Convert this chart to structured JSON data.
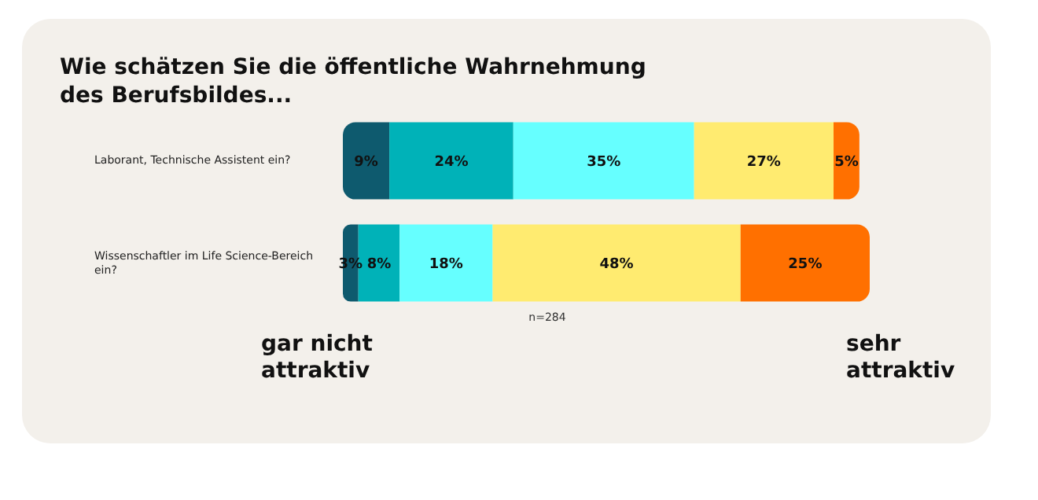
{
  "chart_data": {
    "type": "bar",
    "orientation": "horizontal",
    "stacked": true,
    "title": "Wie schätzen Sie die öffentliche Wahrnehmung des Berufsbildes...",
    "categories": [
      "Laborant, Technische Assistent ein?",
      "Wissenschaftler im Life Science-Bereich ein?"
    ],
    "series": [
      {
        "color": "#0e5a6e",
        "values": [
          9,
          3
        ],
        "value_labels": [
          "9%",
          "3%"
        ]
      },
      {
        "color": "#00b2b8",
        "values": [
          24,
          8
        ],
        "value_labels": [
          "24%",
          "8%"
        ]
      },
      {
        "color": "#66ffff",
        "values": [
          35,
          18
        ],
        "value_labels": [
          "35%",
          "18%"
        ]
      },
      {
        "color": "#ffeb70",
        "values": [
          27,
          48
        ],
        "value_labels": [
          "27%",
          "48%"
        ]
      },
      {
        "color": "#ff7000",
        "values": [
          5,
          25
        ],
        "value_labels": [
          "5%",
          "25%"
        ]
      }
    ],
    "annotations": [
      "n=284",
      "gar nicht attraktiv",
      "sehr attraktiv"
    ],
    "grid": false,
    "legend": false
  }
}
